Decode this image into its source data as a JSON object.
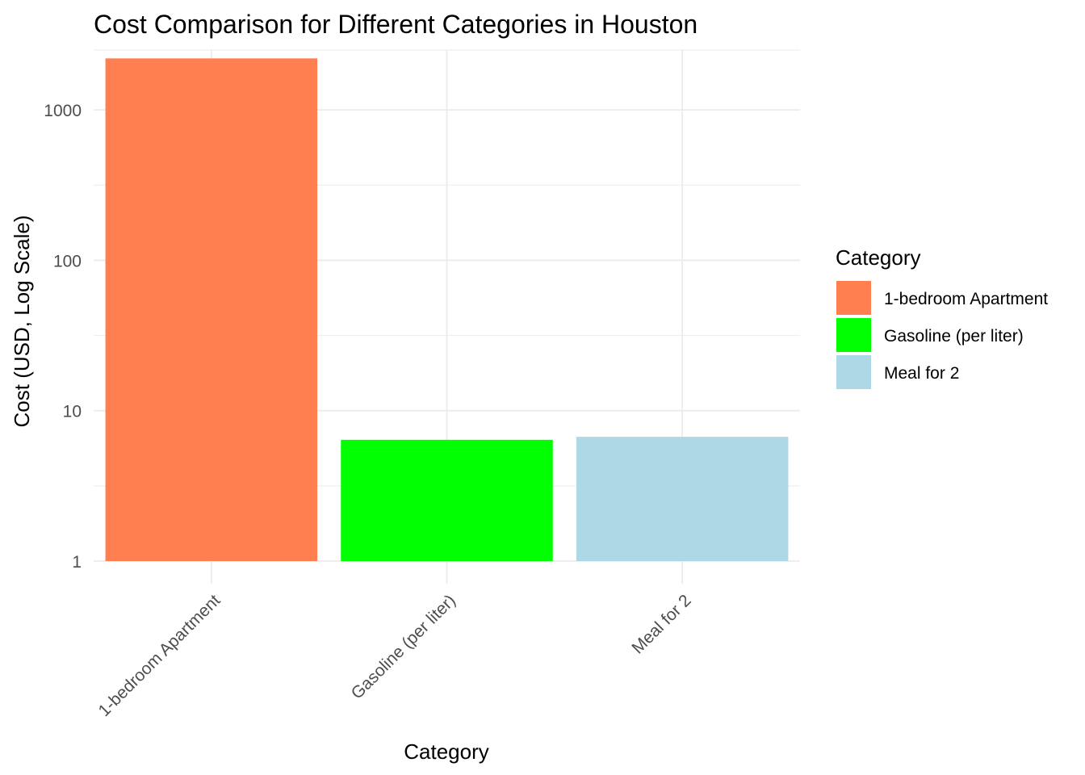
{
  "chart_data": {
    "type": "bar",
    "title": "Cost Comparison for Different Categories in Houston",
    "xlabel": "Category",
    "ylabel": "Cost (USD, Log Scale)",
    "y_scale": "log10",
    "ylim": [
      1,
      2500
    ],
    "y_ticks": [
      1,
      10,
      100,
      1000
    ],
    "y_tick_labels": [
      "1",
      "10",
      "100",
      "1000"
    ],
    "categories": [
      "1-bedroom Apartment",
      "Gasoline (per liter)",
      "Meal for 2"
    ],
    "values": [
      2200,
      6.4,
      6.7
    ],
    "colors": [
      "#FF7F50",
      "#00FF00",
      "#ADD8E6"
    ],
    "grid": true,
    "legend": {
      "title": "Category",
      "placement": "right",
      "entries": [
        "1-bedroom Apartment",
        "Gasoline (per liter)",
        "Meal for 2"
      ]
    }
  }
}
